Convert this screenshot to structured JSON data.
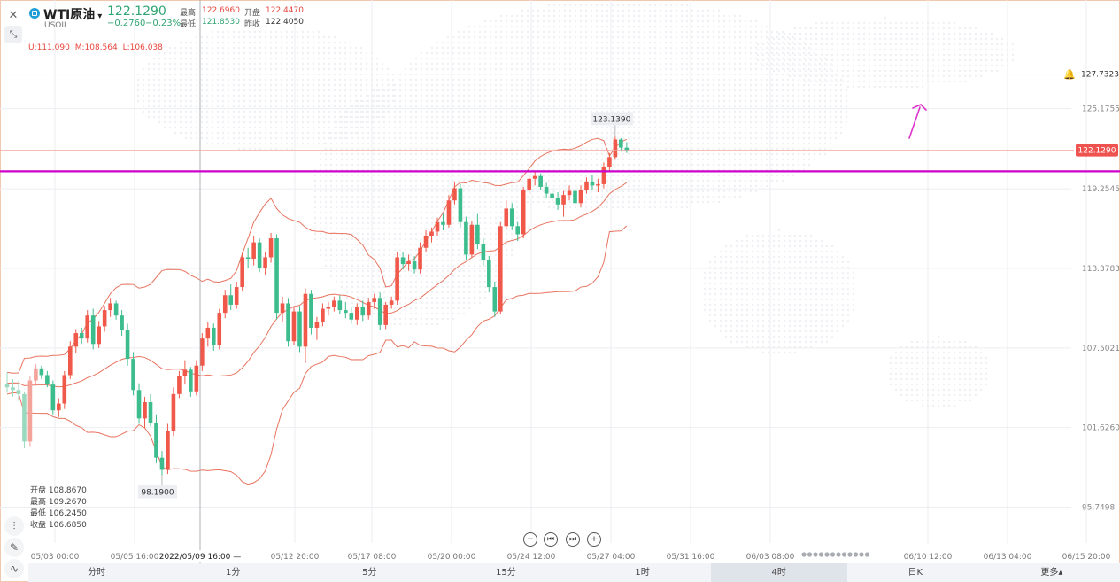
{
  "header": {
    "symbol_name": "WTI原油",
    "dropdown_arrow": "▾",
    "symbol_code": "USOIL",
    "price": "122.1290",
    "change": "−0.2760",
    "change_pct": "−0.23%",
    "stats": {
      "high_label": "最高",
      "high_value": "122.6960",
      "open_label": "开盘",
      "open_value": "122.4470",
      "low_label": "最低",
      "low_value": "121.8530",
      "prev_close_label": "昨收",
      "prev_close_value": "122.4050"
    },
    "bands_legend": {
      "u": "U:111.090",
      "m": "M:108.564",
      "l": "L:106.038"
    }
  },
  "crosshair_ohlc": {
    "open": "开盘 108.8670",
    "high": "最高 109.2670",
    "low": "最低 106.2450",
    "close": "收盘 106.6850"
  },
  "timeframes": [
    "分时",
    "1分",
    "5分",
    "15分",
    "1时",
    "4时",
    "日K",
    "更多▴"
  ],
  "active_timeframe": "4时",
  "icons": {
    "close": "close-icon",
    "shrink": "shrink-icon",
    "bell": "bell-icon",
    "tools": [
      "indicator-icon",
      "draw-pencil-icon",
      "wave-icon"
    ],
    "nav": [
      "zoom-out-icon",
      "skip-start-icon",
      "skip-end-icon",
      "zoom-in-icon"
    ]
  },
  "colors": {
    "up": "#f0584a",
    "down": "#3dbd8d",
    "band": "#e8735f",
    "support_line": "#cc00cc",
    "annotation_arrow": "#dd33cc",
    "price_tag": "#ef5350"
  },
  "chart_data": {
    "type": "candlestick",
    "interval": "4h",
    "y_axis_labels": [
      "127.7323",
      "125.1755",
      "119.2545",
      "113.3783",
      "107.5021",
      "101.6260",
      "95.7498"
    ],
    "x_axis_labels": [
      "05/03 00:00",
      "05/05 16:00",
      "05/12 20:00",
      "05/17 08:00",
      "05/20 00:00",
      "05/24 12:00",
      "05/27 04:00",
      "05/31 16:00",
      "06/03 08:00",
      "06/10 12:00",
      "06/13 04:00",
      "06/15 20:00"
    ],
    "crosshair_time_label": "2022/05/09 16:00 —",
    "current_price_label": "122.1290",
    "alert_price_label": "127.7323",
    "annotations": {
      "max_label": "123.1390",
      "min_label": "98.1900"
    },
    "ylim": [
      93.1,
      133.2
    ],
    "bollinger": {
      "upper": 111.09,
      "middle": 108.564,
      "lower": 106.038
    },
    "horizontal_support_level": 120.55,
    "candles": [
      [
        104.8,
        105.7,
        104.2,
        104.6
      ],
      [
        104.6,
        105.2,
        103.9,
        104.4
      ],
      [
        104.4,
        105.1,
        103.6,
        104.1
      ],
      [
        104.1,
        104.3,
        100.1,
        100.6
      ],
      [
        100.6,
        105.4,
        100.2,
        105.1
      ],
      [
        105.1,
        106.3,
        104.7,
        106.0
      ],
      [
        106.0,
        106.2,
        105.2,
        105.5
      ],
      [
        105.5,
        105.8,
        104.6,
        104.8
      ],
      [
        104.8,
        105.1,
        102.6,
        102.9
      ],
      [
        102.9,
        103.8,
        102.4,
        103.4
      ],
      [
        103.4,
        105.8,
        103.0,
        105.5
      ],
      [
        105.5,
        108.0,
        105.2,
        107.6
      ],
      [
        107.6,
        108.9,
        107.1,
        108.6
      ],
      [
        108.6,
        109.0,
        107.8,
        108.2
      ],
      [
        108.2,
        110.3,
        107.9,
        109.9
      ],
      [
        109.9,
        110.4,
        107.4,
        107.8
      ],
      [
        107.8,
        109.5,
        107.5,
        109.1
      ],
      [
        109.1,
        110.6,
        108.7,
        110.3
      ],
      [
        110.3,
        111.2,
        109.8,
        110.8
      ],
      [
        110.8,
        111.0,
        109.6,
        109.9
      ],
      [
        109.9,
        110.3,
        108.4,
        108.8
      ],
      [
        108.8,
        109.3,
        106.2,
        106.7
      ],
      [
        106.7,
        107.2,
        104.0,
        104.4
      ],
      [
        104.4,
        104.9,
        101.9,
        102.3
      ],
      [
        102.3,
        103.9,
        101.6,
        103.5
      ],
      [
        103.5,
        104.1,
        101.7,
        102.0
      ],
      [
        102.0,
        102.6,
        99.0,
        99.4
      ],
      [
        99.4,
        99.9,
        98.1,
        98.5
      ],
      [
        98.5,
        101.9,
        98.2,
        101.4
      ],
      [
        101.4,
        104.6,
        101.0,
        104.1
      ],
      [
        104.1,
        105.8,
        103.8,
        105.4
      ],
      [
        105.4,
        106.6,
        104.8,
        105.9
      ],
      [
        105.9,
        106.1,
        103.9,
        104.3
      ],
      [
        104.3,
        106.6,
        104.0,
        106.2
      ],
      [
        106.2,
        108.6,
        105.8,
        108.2
      ],
      [
        108.2,
        109.4,
        107.6,
        109.0
      ],
      [
        109.0,
        109.3,
        107.3,
        107.7
      ],
      [
        107.7,
        110.4,
        107.4,
        110.1
      ],
      [
        110.1,
        111.8,
        109.7,
        111.4
      ],
      [
        111.4,
        112.2,
        110.3,
        110.7
      ],
      [
        110.7,
        112.4,
        110.4,
        112.0
      ],
      [
        112.0,
        114.6,
        111.7,
        114.2
      ],
      [
        114.2,
        114.9,
        113.4,
        114.1
      ],
      [
        114.1,
        115.8,
        113.6,
        115.3
      ],
      [
        115.3,
        115.6,
        113.1,
        113.4
      ],
      [
        113.4,
        114.6,
        112.9,
        114.2
      ],
      [
        114.2,
        116.0,
        113.8,
        115.6
      ],
      [
        115.6,
        115.9,
        109.6,
        110.1
      ],
      [
        110.1,
        111.3,
        109.4,
        110.8
      ],
      [
        110.8,
        111.2,
        107.6,
        108.0
      ],
      [
        108.0,
        110.6,
        107.7,
        110.2
      ],
      [
        110.2,
        110.6,
        107.2,
        107.6
      ],
      [
        107.6,
        111.9,
        106.4,
        111.5
      ],
      [
        111.5,
        111.8,
        108.5,
        109.0
      ],
      [
        109.0,
        109.8,
        108.1,
        109.4
      ],
      [
        109.4,
        110.8,
        109.1,
        110.4
      ],
      [
        110.4,
        110.9,
        109.9,
        110.5
      ],
      [
        110.5,
        111.3,
        110.2,
        111.0
      ],
      [
        111.0,
        111.4,
        110.0,
        110.3
      ],
      [
        110.3,
        110.9,
        109.7,
        110.1
      ],
      [
        110.1,
        110.5,
        109.3,
        109.6
      ],
      [
        109.6,
        110.8,
        109.2,
        110.5
      ],
      [
        110.5,
        111.0,
        109.5,
        109.9
      ],
      [
        109.9,
        111.2,
        109.6,
        110.9
      ],
      [
        110.9,
        111.5,
        110.4,
        111.2
      ],
      [
        111.2,
        111.6,
        108.8,
        109.2
      ],
      [
        109.2,
        110.9,
        108.9,
        110.7
      ],
      [
        110.7,
        111.3,
        110.4,
        111.0
      ],
      [
        111.0,
        114.6,
        110.7,
        114.2
      ],
      [
        114.2,
        114.6,
        113.3,
        113.7
      ],
      [
        113.7,
        114.4,
        113.2,
        113.9
      ],
      [
        113.9,
        114.3,
        113.0,
        113.3
      ],
      [
        113.3,
        115.3,
        113.0,
        114.9
      ],
      [
        114.9,
        116.2,
        114.6,
        115.8
      ],
      [
        115.8,
        116.4,
        115.3,
        116.1
      ],
      [
        116.1,
        117.1,
        115.8,
        116.8
      ],
      [
        116.8,
        117.4,
        116.2,
        116.6
      ],
      [
        116.6,
        118.8,
        116.4,
        118.4
      ],
      [
        118.4,
        119.8,
        118.1,
        119.3
      ],
      [
        119.3,
        119.6,
        116.4,
        116.8
      ],
      [
        116.8,
        117.2,
        114.0,
        114.4
      ],
      [
        114.4,
        116.9,
        114.2,
        116.6
      ],
      [
        116.6,
        117.4,
        114.8,
        115.2
      ],
      [
        115.2,
        115.6,
        113.6,
        114.0
      ],
      [
        114.0,
        114.3,
        111.6,
        112.0
      ],
      [
        112.0,
        112.4,
        109.8,
        110.2
      ],
      [
        110.2,
        116.8,
        110.0,
        116.5
      ],
      [
        116.5,
        118.4,
        116.3,
        117.8
      ],
      [
        117.8,
        118.2,
        116.2,
        116.5
      ],
      [
        116.5,
        116.8,
        115.4,
        115.9
      ],
      [
        115.9,
        119.4,
        115.6,
        119.2
      ],
      [
        119.2,
        120.2,
        118.9,
        120.0
      ],
      [
        120.0,
        120.6,
        119.5,
        120.2
      ],
      [
        120.2,
        120.4,
        119.2,
        119.4
      ],
      [
        119.4,
        119.7,
        118.6,
        118.9
      ],
      [
        118.9,
        119.3,
        118.3,
        118.6
      ],
      [
        118.6,
        119.0,
        117.7,
        118.1
      ],
      [
        118.1,
        119.1,
        117.2,
        118.8
      ],
      [
        118.8,
        119.5,
        118.4,
        119.1
      ],
      [
        119.1,
        119.3,
        117.8,
        118.2
      ],
      [
        118.2,
        119.5,
        117.9,
        119.2
      ],
      [
        119.2,
        120.1,
        118.9,
        119.8
      ],
      [
        119.8,
        120.3,
        119.2,
        119.5
      ],
      [
        119.5,
        120.0,
        119.0,
        119.6
      ],
      [
        119.6,
        121.2,
        119.3,
        120.9
      ],
      [
        120.9,
        121.9,
        120.6,
        121.6
      ],
      [
        121.6,
        123.1,
        121.4,
        122.9
      ],
      [
        122.9,
        123.0,
        122.0,
        122.3
      ],
      [
        122.3,
        122.7,
        121.9,
        122.1
      ]
    ]
  }
}
